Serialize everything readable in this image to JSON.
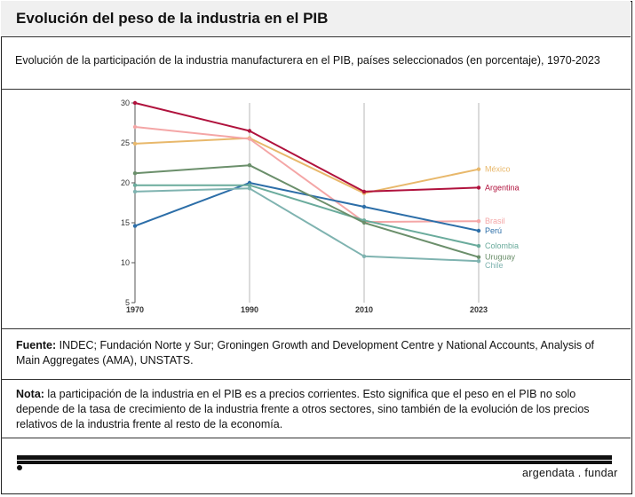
{
  "header": {
    "title": "Evolución del peso de la industria en el PIB",
    "subtitle": "Evolución de la participación de la industria manufacturera en el PIB, países seleccionados (en porcentaje), 1970-2023"
  },
  "chart_data": {
    "type": "line",
    "title": "Evolución del peso de la industria en el PIB",
    "subtitle": "Evolución de la participación de la industria manufacturera en el PIB, países seleccionados (en porcentaje), 1970-2023",
    "xlabel": "",
    "ylabel": "",
    "x": [
      "1970",
      "1990",
      "2010",
      "2023"
    ],
    "ylim": [
      5,
      30
    ],
    "yticks": [
      5,
      10,
      15,
      20,
      25,
      30
    ],
    "grid": "vertical",
    "series": [
      {
        "name": "México",
        "color": "#e8b86b",
        "values": [
          24.9,
          25.6,
          18.7,
          21.7
        ]
      },
      {
        "name": "Argentina",
        "color": "#b0123d",
        "values": [
          30.0,
          26.5,
          18.9,
          19.4
        ]
      },
      {
        "name": "Brasil",
        "color": "#f4a6a6",
        "values": [
          27.0,
          25.5,
          15.1,
          15.2
        ]
      },
      {
        "name": "Perú",
        "color": "#2c6ea8",
        "values": [
          14.6,
          20.0,
          17.0,
          14.0
        ]
      },
      {
        "name": "Colombia",
        "color": "#6aab9c",
        "values": [
          19.7,
          19.7,
          15.3,
          12.1
        ]
      },
      {
        "name": "Uruguay",
        "color": "#6b8f6b",
        "values": [
          21.2,
          22.2,
          15.0,
          10.7
        ]
      },
      {
        "name": "Chile",
        "color": "#7fb3b0",
        "values": [
          18.9,
          19.3,
          10.8,
          10.2
        ]
      }
    ]
  },
  "source": {
    "label": "Fuente:",
    "text": " INDEC; Fundación Norte y Sur; Groningen Growth and Development Centre y National Accounts, Analysis of Main Aggregates (AMA), UNSTATS."
  },
  "note": {
    "label": "Nota:",
    "text": " la participación de la industria en el PIB es a precios corrientes. Esto significa que el peso en el PIB no solo depende de la tasa de crecimiento de la industria frente a otros sectores, sino también de la evolución de los precios relativos de la industria frente al resto de la economía."
  },
  "footer": {
    "brand": "argendata . fundar"
  }
}
